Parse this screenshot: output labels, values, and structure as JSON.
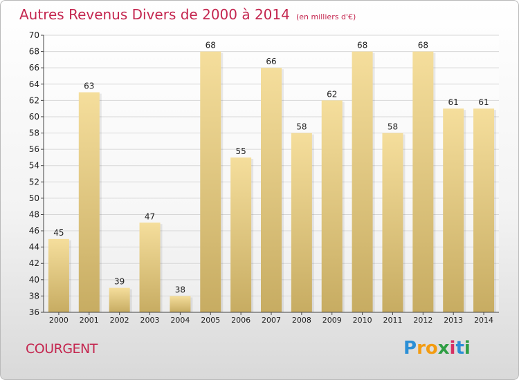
{
  "title": "Autres Revenus Divers de 2000 à 2014",
  "unit_note": "(en milliers d'€)",
  "commune": "COURGENT",
  "logo": {
    "letters": [
      {
        "ch": "P",
        "color": "#2b8fd6"
      },
      {
        "ch": "r",
        "color": "#f39c12"
      },
      {
        "ch": "o",
        "color": "#f39c12"
      },
      {
        "ch": "x",
        "color": "#2f9e44"
      },
      {
        "ch": "i",
        "color": "#d62f63"
      },
      {
        "ch": "t",
        "color": "#2b8fd6"
      },
      {
        "ch": "i",
        "color": "#2f9e44"
      }
    ]
  },
  "colors": {
    "bar_light": "#f5de9c",
    "bar_dark": "#c7ac62",
    "grid": "#d7d7d7",
    "axis": "#444444",
    "text": "#222222",
    "accent": "#c4264f"
  },
  "chart_data": {
    "type": "bar",
    "title": "Autres Revenus Divers de 2000 à 2014",
    "xlabel": "",
    "ylabel": "",
    "categories": [
      "2000",
      "2001",
      "2002",
      "2003",
      "2004",
      "2005",
      "2006",
      "2007",
      "2008",
      "2009",
      "2010",
      "2011",
      "2012",
      "2013",
      "2014"
    ],
    "values": [
      45,
      63,
      39,
      47,
      38,
      68,
      55,
      66,
      58,
      62,
      68,
      58,
      68,
      61,
      61
    ],
    "ylim": [
      36,
      70
    ],
    "yticks": [
      36,
      38,
      40,
      42,
      44,
      46,
      48,
      50,
      52,
      54,
      56,
      58,
      60,
      62,
      64,
      66,
      68,
      70
    ],
    "grid": true,
    "data_labels": true
  }
}
